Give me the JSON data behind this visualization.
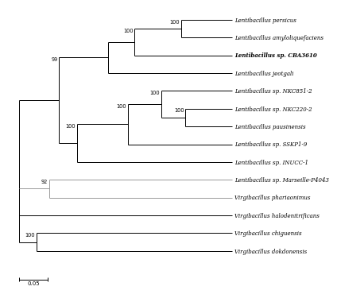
{
  "taxa": [
    {
      "name": "Lentibacillus persicus",
      "bold": false,
      "y": 1
    },
    {
      "name": "Lentibacillus amyloliquefaciens",
      "bold": false,
      "y": 2
    },
    {
      "name": "Lentibacillus sp. CBA3610",
      "bold": true,
      "y": 3
    },
    {
      "name": "Lentibacillus jeotgali",
      "bold": false,
      "y": 4
    },
    {
      "name": "Lentibacillus sp. NKC851-2",
      "bold": false,
      "y": 5
    },
    {
      "name": "Lentibacillus sp. NKC220-2",
      "bold": false,
      "y": 6
    },
    {
      "name": "Lentibacillus pausinensis",
      "bold": false,
      "y": 7
    },
    {
      "name": "Lentibacillus sp. SSKP1-9",
      "bold": false,
      "y": 8
    },
    {
      "name": "Lentibacillus sp. INUCC-1",
      "bold": false,
      "y": 9
    },
    {
      "name": "Lentibacillus sp. Marseille-P4043",
      "bold": false,
      "y": 10
    },
    {
      "name": "Virgibacillus phariaonimus",
      "bold": false,
      "y": 11
    },
    {
      "name": "Virgibacillus halodenitrificans",
      "bold": false,
      "y": 12
    },
    {
      "name": "Virgibacillus chiguensis",
      "bold": false,
      "y": 13
    },
    {
      "name": "Virgibacillus dokdonensis",
      "bold": false,
      "y": 14
    }
  ],
  "scale_bar_label": "0.05",
  "font_size": 5.0,
  "bootstrap_font_size": 4.8
}
